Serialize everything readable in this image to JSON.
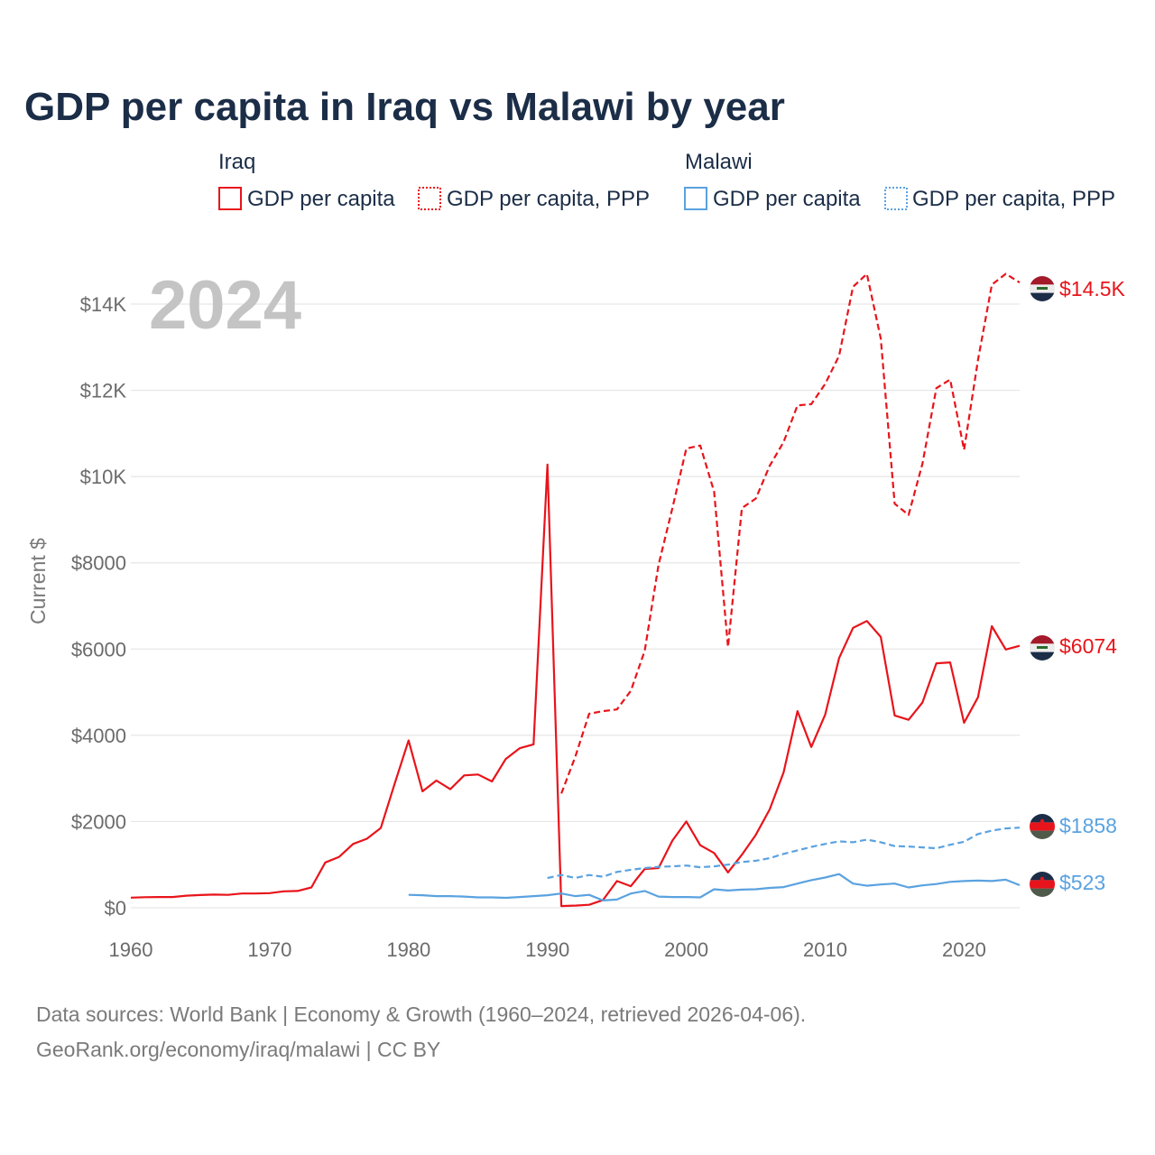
{
  "title": "GDP per capita in Iraq vs Malawi by year",
  "big_year": "2024",
  "legend": {
    "groups": [
      {
        "country": "Iraq",
        "color": "#e8141b",
        "items": [
          {
            "label": "GDP per capita",
            "style": "solid"
          },
          {
            "label": "GDP per capita, PPP",
            "style": "dotted"
          }
        ]
      },
      {
        "country": "Malawi",
        "color": "#5aa2e0",
        "items": [
          {
            "label": "GDP per capita",
            "style": "solid"
          },
          {
            "label": "GDP per capita, PPP",
            "style": "dotted"
          }
        ]
      }
    ]
  },
  "end_labels": [
    {
      "text": "$14.5K",
      "flag": "iraq-flag",
      "color": "#e8141b"
    },
    {
      "text": "$6074",
      "flag": "iraq-flag",
      "color": "#e8141b"
    },
    {
      "text": "$1858",
      "flag": "malawi-flag",
      "color": "#5aa2e0"
    },
    {
      "text": "$523",
      "flag": "malawi-flag",
      "color": "#5aa2e0"
    }
  ],
  "source": {
    "line1": "Data sources: World Bank | Economy & Growth (1960–2024, retrieved 2026-04-06).",
    "line2": "GeoRank.org/economy/iraq/malawi | CC BY"
  },
  "chart_data": {
    "type": "line",
    "title": "GDP per capita in Iraq vs Malawi by year",
    "xlabel": "",
    "ylabel": "Current $",
    "xlim": [
      1960,
      2024
    ],
    "ylim": [
      0,
      15000
    ],
    "x_ticks": [
      1960,
      1970,
      1980,
      1990,
      2000,
      2010,
      2020
    ],
    "y_ticks": [
      {
        "value": 0,
        "label": "$0"
      },
      {
        "value": 2000,
        "label": "$2000"
      },
      {
        "value": 4000,
        "label": "$4000"
      },
      {
        "value": 6000,
        "label": "$6000"
      },
      {
        "value": 8000,
        "label": "$8000"
      },
      {
        "value": 10000,
        "label": "$10K"
      },
      {
        "value": 12000,
        "label": "$12K"
      },
      {
        "value": 14000,
        "label": "$14K"
      }
    ],
    "series": [
      {
        "name": "Iraq GDP per capita",
        "color": "#e8141b",
        "dash": "solid",
        "x": [
          1960,
          1961,
          1962,
          1963,
          1964,
          1965,
          1966,
          1967,
          1968,
          1969,
          1970,
          1971,
          1972,
          1973,
          1974,
          1975,
          1976,
          1977,
          1978,
          1979,
          1980,
          1981,
          1982,
          1983,
          1984,
          1985,
          1986,
          1987,
          1988,
          1989,
          1990,
          1991,
          1992,
          1993,
          1994,
          1995,
          1996,
          1997,
          1998,
          1999,
          2000,
          2001,
          2002,
          2003,
          2004,
          2005,
          2006,
          2007,
          2008,
          2009,
          2010,
          2011,
          2012,
          2013,
          2014,
          2015,
          2016,
          2017,
          2018,
          2019,
          2020,
          2021,
          2022,
          2023,
          2024
        ],
        "values": [
          235,
          245,
          250,
          250,
          280,
          295,
          305,
          300,
          330,
          330,
          340,
          380,
          390,
          470,
          1050,
          1180,
          1480,
          1600,
          1850,
          2880,
          3880,
          2700,
          2950,
          2750,
          3070,
          3090,
          2930,
          3450,
          3700,
          3790,
          10280,
          40,
          50,
          70,
          180,
          620,
          500,
          900,
          920,
          1560,
          2000,
          1450,
          1270,
          820,
          1230,
          1690,
          2280,
          3140,
          4560,
          3730,
          4480,
          5790,
          6490,
          6650,
          6280,
          4460,
          4360,
          4760,
          5670,
          5690,
          4290,
          4880,
          6530,
          5990,
          6074
        ]
      },
      {
        "name": "Iraq GDP per capita, PPP",
        "color": "#e8141b",
        "dash": "dashed",
        "x": [
          1991,
          1992,
          1993,
          1994,
          1995,
          1996,
          1997,
          1998,
          1999,
          2000,
          2001,
          2002,
          2003,
          2004,
          2005,
          2006,
          2007,
          2008,
          2009,
          2010,
          2011,
          2012,
          2013,
          2014,
          2015,
          2016,
          2017,
          2018,
          2019,
          2020,
          2021,
          2022,
          2023,
          2024
        ],
        "values": [
          2650,
          3500,
          4500,
          4560,
          4600,
          5030,
          5960,
          7950,
          9270,
          10650,
          10720,
          9650,
          6050,
          9270,
          9490,
          10250,
          10800,
          11650,
          11680,
          12150,
          12800,
          14400,
          14700,
          13200,
          9370,
          9110,
          10300,
          12050,
          12250,
          10620,
          12700,
          14450,
          14700,
          14500
        ]
      },
      {
        "name": "Malawi GDP per capita",
        "color": "#5aa2e0",
        "dash": "solid",
        "x": [
          1980,
          1981,
          1982,
          1983,
          1984,
          1985,
          1986,
          1987,
          1988,
          1989,
          1990,
          1991,
          1992,
          1993,
          1994,
          1995,
          1996,
          1997,
          1998,
          1999,
          2000,
          2001,
          2002,
          2003,
          2004,
          2005,
          2006,
          2007,
          2008,
          2009,
          2010,
          2011,
          2012,
          2013,
          2014,
          2015,
          2016,
          2017,
          2018,
          2019,
          2020,
          2021,
          2022,
          2023,
          2024
        ],
        "values": [
          300,
          290,
          270,
          270,
          260,
          240,
          240,
          230,
          250,
          270,
          290,
          330,
          270,
          300,
          170,
          190,
          330,
          390,
          260,
          250,
          250,
          240,
          430,
          400,
          420,
          430,
          460,
          480,
          560,
          640,
          700,
          780,
          560,
          510,
          540,
          560,
          470,
          520,
          550,
          600,
          620,
          630,
          620,
          650,
          523
        ]
      },
      {
        "name": "Malawi GDP per capita, PPP",
        "color": "#5aa2e0",
        "dash": "dashed",
        "x": [
          1990,
          1991,
          1992,
          1993,
          1994,
          1995,
          1996,
          1997,
          1998,
          1999,
          2000,
          2001,
          2002,
          2003,
          2004,
          2005,
          2006,
          2007,
          2008,
          2009,
          2010,
          2011,
          2012,
          2013,
          2014,
          2015,
          2016,
          2017,
          2018,
          2019,
          2020,
          2021,
          2022,
          2023,
          2024
        ],
        "values": [
          690,
          760,
          690,
          760,
          720,
          830,
          880,
          920,
          950,
          960,
          980,
          940,
          960,
          1000,
          1060,
          1090,
          1150,
          1250,
          1330,
          1410,
          1480,
          1540,
          1520,
          1580,
          1520,
          1430,
          1420,
          1400,
          1380,
          1460,
          1530,
          1710,
          1790,
          1840,
          1858
        ]
      }
    ]
  }
}
